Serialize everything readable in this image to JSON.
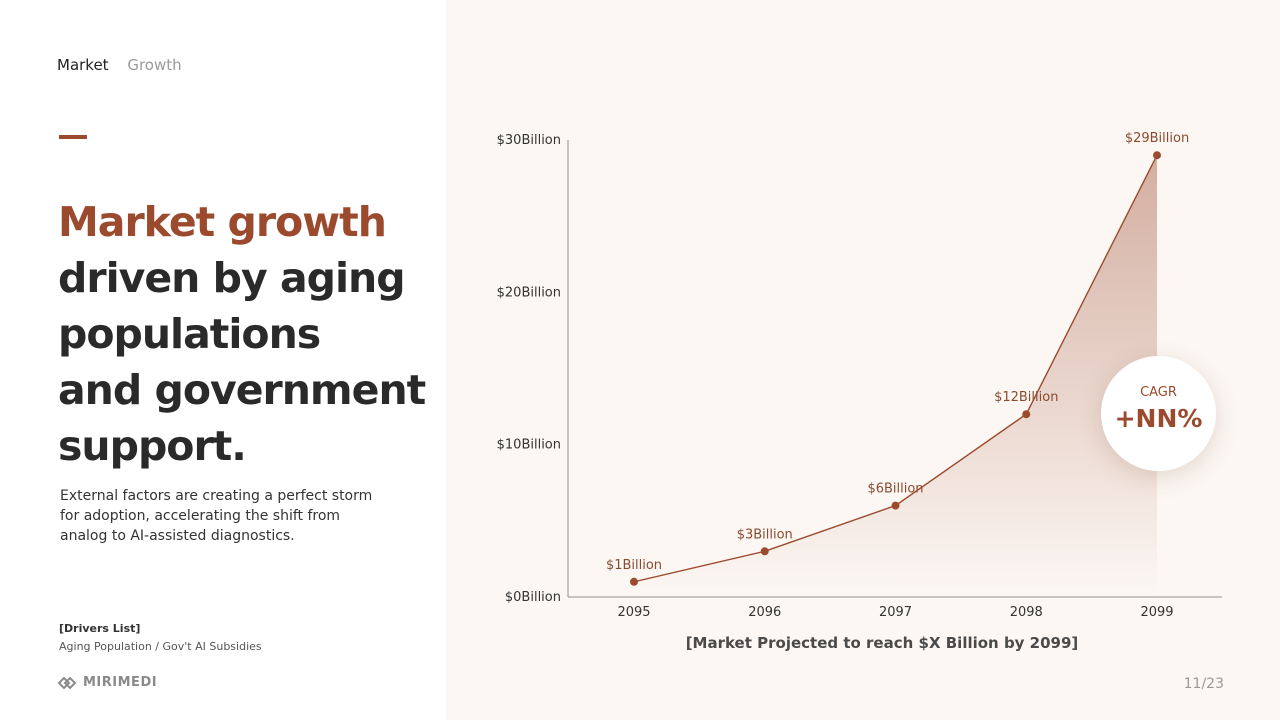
{
  "nav": {
    "breadcrumb": [
      "Market",
      "Growth"
    ]
  },
  "headline": {
    "accent": "Market growth",
    "lines": [
      "driven by aging",
      "populations",
      "and government",
      "support."
    ]
  },
  "body": {
    "lines": [
      "External factors are creating a perfect storm",
      "for adoption, accelerating the shift from",
      "analog to AI-assisted diagnostics."
    ]
  },
  "drivers": {
    "title": "[Drivers List]",
    "items": "Aging Population / Gov't AI Subsidies"
  },
  "brand": {
    "name": "MIRIMEDI",
    "icon": "mirimedi-logo-icon"
  },
  "page": {
    "number": "11/23"
  },
  "cagr": {
    "label": "CAGR",
    "value": "+NN%"
  },
  "colors": {
    "accent": "#9b4a2e",
    "panel_bg": "#fcf7f3",
    "text": "#2a2a2a"
  },
  "chart_data": {
    "type": "line",
    "title": "",
    "caption": "[Market Projected to reach $X Billion by 2099]",
    "x": [
      "2095",
      "2096",
      "2097",
      "2098",
      "2099"
    ],
    "series": [
      {
        "values": [
          1,
          3,
          6,
          12,
          29
        ]
      }
    ],
    "data_labels": [
      "$1Billion",
      "$3Billion",
      "$6Billion",
      "$12Billion",
      "$29Billion"
    ],
    "yticks": [
      0,
      10,
      20,
      30
    ],
    "ytick_labels": [
      "$0Billion",
      "$10Billion",
      "$20Billion",
      "$30Billion"
    ],
    "ylim": [
      0,
      30
    ],
    "fill": "area-gradient",
    "grid": false,
    "legend": "none"
  }
}
